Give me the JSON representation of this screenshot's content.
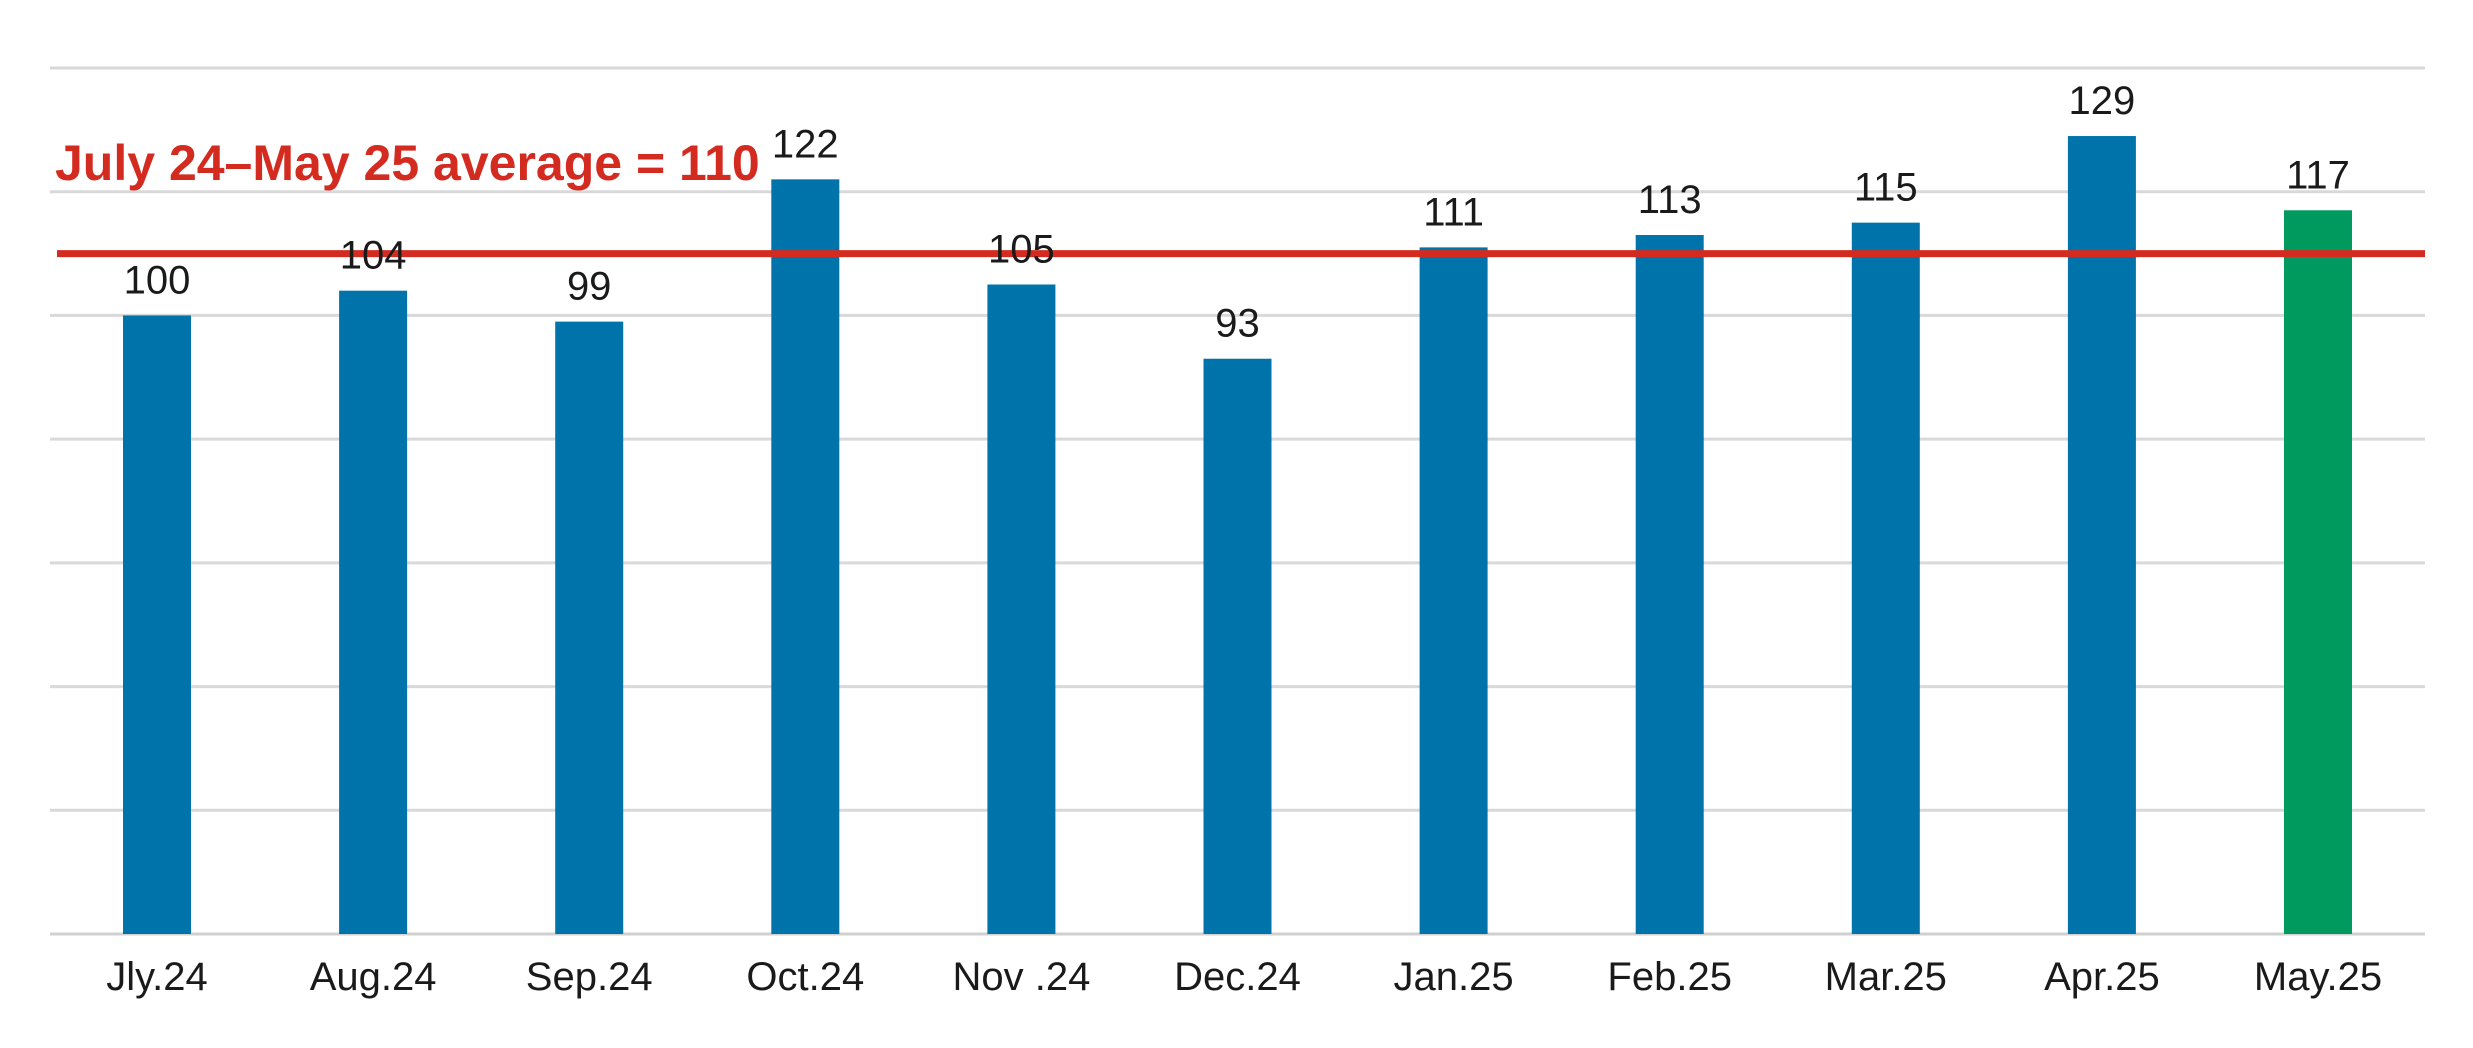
{
  "chart_data": {
    "type": "bar",
    "title": "",
    "xlabel": "",
    "ylabel": "",
    "categories": [
      "Jly.24",
      "Aug.24",
      "Sep.24",
      "Oct.24",
      "Nov .24",
      "Dec.24",
      "Jan.25",
      "Feb.25",
      "Mar.25",
      "Apr.25",
      "May.25"
    ],
    "series": [
      {
        "values": [
          100,
          104,
          99,
          122,
          105,
          93,
          111,
          113,
          115,
          129,
          117
        ]
      }
    ],
    "data_labels": [
      "100",
      "104",
      "99",
      "122",
      "105",
      "93",
      "111",
      "113",
      "115",
      "129",
      "117"
    ],
    "ylim": [
      0,
      140
    ],
    "grid": true,
    "y_tick_labels_shown": false,
    "average_line": {
      "value": 110,
      "label": "July 24–May 25 average = 110",
      "color": "#d42b21"
    },
    "colors": {
      "bar": "#0074aa",
      "highlight_bar": "#009a5e",
      "highlight_index": 10
    }
  }
}
